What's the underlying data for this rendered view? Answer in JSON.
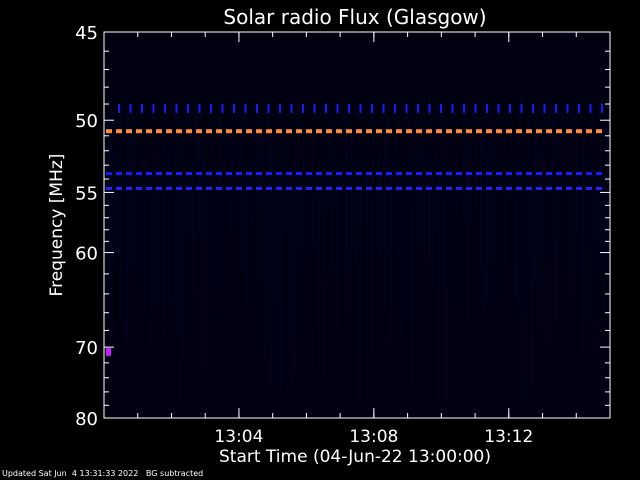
{
  "chart_data": {
    "type": "heatmap",
    "title": "Solar radio Flux (Glasgow)",
    "ylabel": "Frequency [MHz]",
    "xlabel": "Start Time (04-Jun-22 13:00:00)",
    "y_ticks": [
      {
        "value": 45,
        "label": "45"
      },
      {
        "value": 50,
        "label": "50"
      },
      {
        "value": 55,
        "label": "55"
      },
      {
        "value": 60,
        "label": "60"
      },
      {
        "value": 70,
        "label": "70"
      },
      {
        "value": 80,
        "label": "80"
      }
    ],
    "y_minor_ticks": [
      46,
      47,
      48,
      49,
      51,
      52,
      53,
      54,
      56,
      57,
      58,
      59,
      62,
      64,
      66,
      68,
      72,
      74,
      76,
      78
    ],
    "ylim": [
      45,
      80
    ],
    "y_scale": "reciprocal",
    "x_ticks": [
      {
        "value": 4,
        "label": "13:04"
      },
      {
        "value": 8,
        "label": "13:08"
      },
      {
        "value": 12,
        "label": "13:12"
      }
    ],
    "x_minor_step": 1,
    "xlim": [
      0,
      15
    ],
    "x_unit": "minutes after 13:00:00",
    "bands": [
      {
        "freq": 49.3,
        "color": "#1a1aff",
        "style": "spikes"
      },
      {
        "freq": 50.7,
        "color": "#ff8c3a",
        "style": "dashes"
      },
      {
        "freq": 53.6,
        "color": "#1a1aff",
        "style": "dashes"
      },
      {
        "freq": 54.7,
        "color": "#2222ff",
        "style": "dashes"
      }
    ],
    "features": [
      {
        "time": 0.15,
        "freq": 70.6,
        "color": "#c020ff"
      }
    ],
    "background_color": "#000010",
    "axis_color": "#ffffff"
  },
  "footer": {
    "updated": "Updated Sat Jun  4 13:31:33 2022   BG subtracted"
  }
}
